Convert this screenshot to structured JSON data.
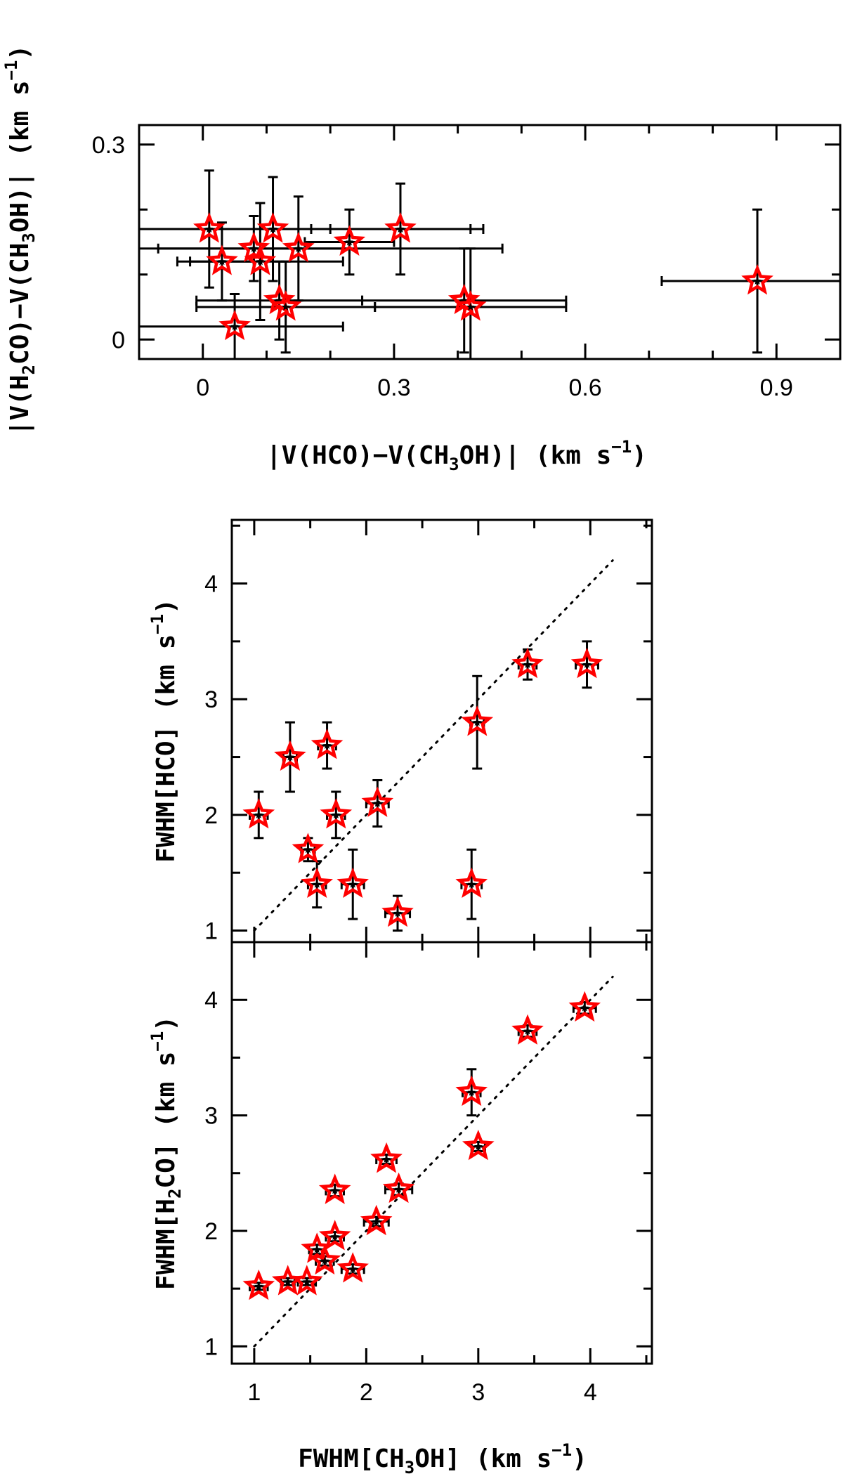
{
  "chart_data": [
    {
      "type": "scatter",
      "xlabel": {
        "pre": "|V(HCO)−V(CH",
        "sub": "3",
        "post": "OH)| (km s",
        "sup": "−1",
        "end": ")"
      },
      "ylabel": {
        "pre": "|V(H",
        "sub1": "2",
        "mid": "CO)−V(CH",
        "sub2": "3",
        "post": "OH)| (km s",
        "sup": "−1",
        "end": ")"
      },
      "xlim": [
        -0.1,
        1.0
      ],
      "ylim": [
        -0.03,
        0.33
      ],
      "xticks": [
        "0",
        "0.3",
        "0.6",
        "0.9"
      ],
      "yticks": [
        "0",
        "0.3"
      ],
      "marker_color": "#ff0000",
      "points": [
        {
          "x": 0.01,
          "y": 0.17,
          "xerr": 0.16,
          "yerr": 0.09
        },
        {
          "x": 0.03,
          "y": 0.12,
          "xerr": 0.05,
          "yerr": 0.06
        },
        {
          "x": 0.05,
          "y": 0.02,
          "xerr": 0.17,
          "yerr": 0.05
        },
        {
          "x": 0.08,
          "y": 0.14,
          "xerr": 0.15,
          "yerr": 0.05
        },
        {
          "x": 0.09,
          "y": 0.12,
          "xerr": 0.13,
          "yerr": 0.09
        },
        {
          "x": 0.11,
          "y": 0.17,
          "xerr": 0.33,
          "yerr": 0.08
        },
        {
          "x": 0.12,
          "y": 0.06,
          "xerr": 0.13,
          "yerr": 0.06
        },
        {
          "x": 0.13,
          "y": 0.05,
          "xerr": 0.14,
          "yerr": 0.07
        },
        {
          "x": 0.15,
          "y": 0.14,
          "xerr": 0.32,
          "yerr": 0.08
        },
        {
          "x": 0.23,
          "y": 0.15,
          "xerr": 0.07,
          "yerr": 0.05
        },
        {
          "x": 0.31,
          "y": 0.17,
          "xerr": 0.11,
          "yerr": 0.07
        },
        {
          "x": 0.41,
          "y": 0.06,
          "xerr": 0.16,
          "yerr": 0.08
        },
        {
          "x": 0.42,
          "y": 0.05,
          "xerr": 0.15,
          "yerr": 0.09
        },
        {
          "x": 0.87,
          "y": 0.09,
          "xerr": 0.15,
          "yerr": 0.11
        }
      ]
    },
    {
      "type": "scatter",
      "ylabel": {
        "pre": "FWHM[HCO] (km s",
        "sup": "−1",
        "end": ")"
      },
      "xlim": [
        0.8,
        4.55
      ],
      "ylim": [
        0.9,
        4.55
      ],
      "yticks": [
        "1",
        "2",
        "3",
        "4"
      ],
      "reference_line": "y = x",
      "points": [
        {
          "x": 1.04,
          "y": 2.0,
          "xerr": 0.08,
          "yerr": 0.2
        },
        {
          "x": 1.32,
          "y": 2.5,
          "xerr": 0.06,
          "yerr": 0.3
        },
        {
          "x": 1.48,
          "y": 1.7,
          "xerr": 0.06,
          "yerr": 0.1
        },
        {
          "x": 1.56,
          "y": 1.4,
          "xerr": 0.08,
          "yerr": 0.2
        },
        {
          "x": 1.65,
          "y": 2.6,
          "xerr": 0.08,
          "yerr": 0.2
        },
        {
          "x": 1.73,
          "y": 2.0,
          "xerr": 0.08,
          "yerr": 0.2
        },
        {
          "x": 1.88,
          "y": 1.4,
          "xerr": 0.1,
          "yerr": 0.3
        },
        {
          "x": 2.1,
          "y": 2.1,
          "xerr": 0.1,
          "yerr": 0.2
        },
        {
          "x": 2.28,
          "y": 1.15,
          "xerr": 0.11,
          "yerr": 0.15
        },
        {
          "x": 2.94,
          "y": 1.4,
          "xerr": 0.09,
          "yerr": 0.3
        },
        {
          "x": 2.99,
          "y": 2.8,
          "xerr": 0.06,
          "yerr": 0.4
        },
        {
          "x": 3.44,
          "y": 3.3,
          "xerr": 0.08,
          "yerr": 0.13
        },
        {
          "x": 3.97,
          "y": 3.3,
          "xerr": 0.1,
          "yerr": 0.2
        }
      ]
    },
    {
      "type": "scatter",
      "xlabel": {
        "pre": "FWHM[CH",
        "sub": "3",
        "post": "OH] (km s",
        "sup": "−1",
        "end": ")"
      },
      "ylabel": {
        "pre": "FWHM[H",
        "sub": "2",
        "post": "CO] (km s",
        "sup": "−1",
        "end": ")"
      },
      "xlim": [
        0.8,
        4.55
      ],
      "ylim": [
        0.85,
        4.5
      ],
      "xticks": [
        "1",
        "2",
        "3",
        "4"
      ],
      "yticks": [
        "1",
        "2",
        "3",
        "4"
      ],
      "reference_line": "y = x",
      "points": [
        {
          "x": 1.04,
          "y": 1.52,
          "xerr": 0.08,
          "yerr": 0.03
        },
        {
          "x": 1.3,
          "y": 1.56,
          "xerr": 0.06,
          "yerr": 0.03
        },
        {
          "x": 1.47,
          "y": 1.56,
          "xerr": 0.08,
          "yerr": 0.03
        },
        {
          "x": 1.56,
          "y": 1.84,
          "xerr": 0.07,
          "yerr": 0.04
        },
        {
          "x": 1.63,
          "y": 1.74,
          "xerr": 0.08,
          "yerr": 0.04
        },
        {
          "x": 1.72,
          "y": 1.95,
          "xerr": 0.08,
          "yerr": 0.04
        },
        {
          "x": 1.72,
          "y": 2.35,
          "xerr": 0.08,
          "yerr": 0.05
        },
        {
          "x": 1.88,
          "y": 1.67,
          "xerr": 0.1,
          "yerr": 0.04
        },
        {
          "x": 2.09,
          "y": 2.08,
          "xerr": 0.11,
          "yerr": 0.04
        },
        {
          "x": 2.18,
          "y": 2.62,
          "xerr": 0.09,
          "yerr": 0.04
        },
        {
          "x": 2.29,
          "y": 2.36,
          "xerr": 0.12,
          "yerr": 0.05
        },
        {
          "x": 2.94,
          "y": 3.2,
          "xerr": 0.08,
          "yerr": 0.2
        },
        {
          "x": 3.0,
          "y": 2.73,
          "xerr": 0.06,
          "yerr": 0.04
        },
        {
          "x": 3.44,
          "y": 3.73,
          "xerr": 0.08,
          "yerr": 0.05
        },
        {
          "x": 3.95,
          "y": 3.93,
          "xerr": 0.1,
          "yerr": 0.05
        }
      ]
    }
  ]
}
